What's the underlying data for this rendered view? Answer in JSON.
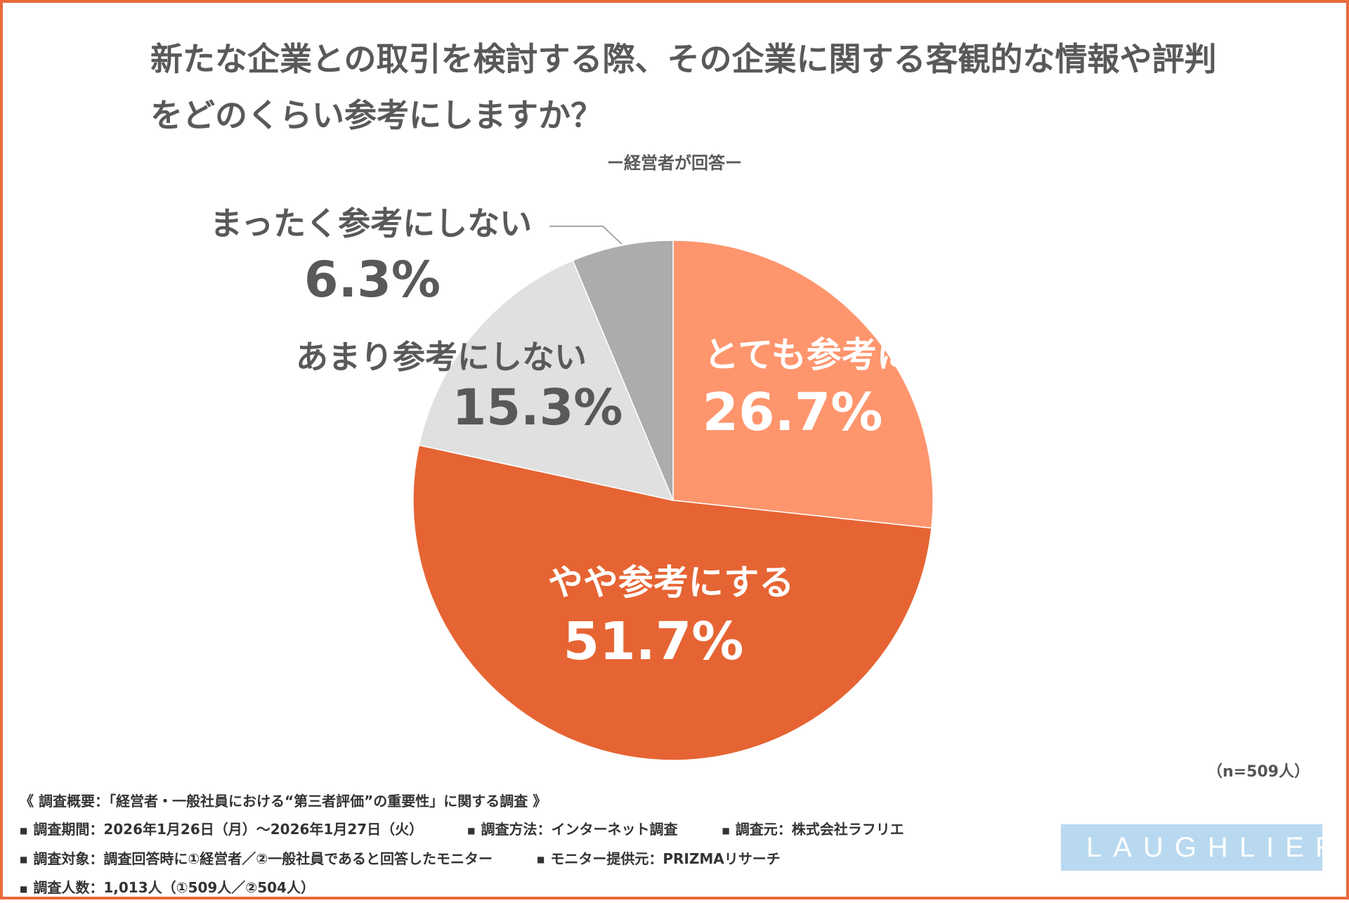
{
  "title": "新たな企業との取引を検討する際、その企業に関する客観的な情報や評判をどのくらい参考にしますか？",
  "subtitle": "ー経営者が回答ー",
  "chart_data": {
    "type": "pie",
    "start": "12 o'clock, clockwise",
    "slices": [
      {
        "label": "とても参考にする",
        "value": 26.7,
        "display": "26.7%",
        "color": "#fe956d",
        "label_color": "#ffffff",
        "label_position": "inside"
      },
      {
        "label": "やや参考にする",
        "value": 51.7,
        "display": "51.7%",
        "color": "#e66433",
        "label_color": "#ffffff",
        "label_position": "inside"
      },
      {
        "label": "あまり参考にしない",
        "value": 15.3,
        "display": "15.3%",
        "color": "#e0e0e0",
        "label_color": "#595959",
        "label_position": "inside"
      },
      {
        "label": "まったく参考にしない",
        "value": 6.3,
        "display": "6.3%",
        "color": "#acacac",
        "label_color": "#595959",
        "label_position": "outside, with leader line"
      }
    ]
  },
  "n_note": "（n=509人）",
  "survey": {
    "heading": "《 調査概要：「経営者・一般社員における“第三者評価”の重要性」に関する調査 》",
    "line2": [
      "調査期間：2026年1月26日（月）〜2026年1月27日（火）",
      "調査方法：インターネット調査",
      "調査元：株式会社ラフリエ"
    ],
    "line3": [
      "調査対象：調査回答時に①経営者／②一般社員であると回答したモニター",
      "モニター提供元：PRIZMAリサーチ"
    ],
    "line4": [
      "調査人数：1,013人（①509人／②504人）"
    ],
    "bullet": "■"
  },
  "logo": {
    "text": "LAUGHLIER",
    "background": "#b9d9f0"
  },
  "frame_color": "#e96a3b"
}
